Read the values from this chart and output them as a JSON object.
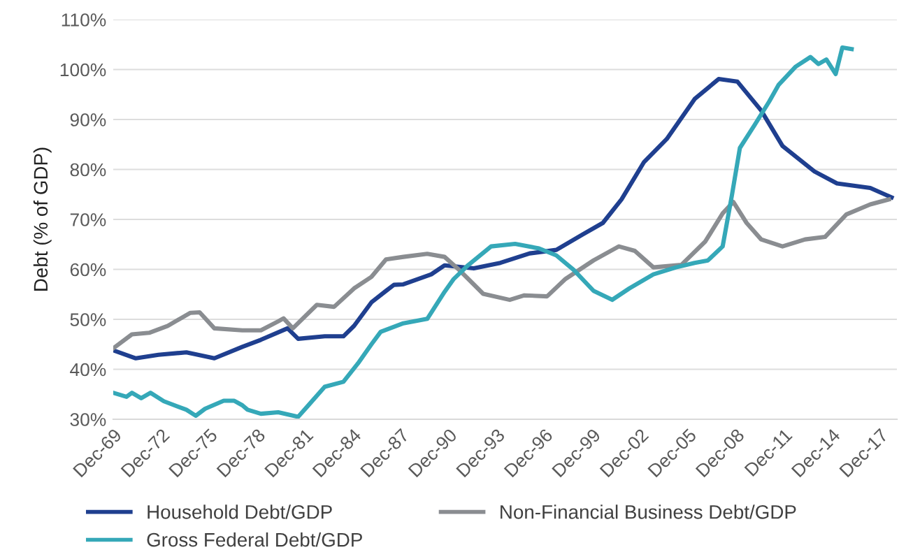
{
  "chart_data": {
    "type": "line",
    "ylabel": "Debt (% of GDP)",
    "xlim": [
      "1969-12",
      "2019-01"
    ],
    "ylim": [
      30,
      110
    ],
    "yticks": [
      {
        "value": 30,
        "label": "30%"
      },
      {
        "value": 40,
        "label": "40%"
      },
      {
        "value": 50,
        "label": "50%"
      },
      {
        "value": 60,
        "label": "60%"
      },
      {
        "value": 70,
        "label": "70%"
      },
      {
        "value": 80,
        "label": "80%"
      },
      {
        "value": 90,
        "label": "90%"
      },
      {
        "value": 100,
        "label": "100%"
      },
      {
        "value": 110,
        "label": "110%"
      }
    ],
    "xticks": [
      {
        "value": "1969-12",
        "label": "Dec-69"
      },
      {
        "value": "1972-12",
        "label": "Dec-72"
      },
      {
        "value": "1975-12",
        "label": "Dec-75"
      },
      {
        "value": "1978-12",
        "label": "Dec-78"
      },
      {
        "value": "1981-12",
        "label": "Dec-81"
      },
      {
        "value": "1984-12",
        "label": "Dec-84"
      },
      {
        "value": "1987-12",
        "label": "Dec-87"
      },
      {
        "value": "1990-12",
        "label": "Dec-90"
      },
      {
        "value": "1993-12",
        "label": "Dec-93"
      },
      {
        "value": "1996-12",
        "label": "Dec-96"
      },
      {
        "value": "1999-12",
        "label": "Dec-99"
      },
      {
        "value": "2002-12",
        "label": "Dec-02"
      },
      {
        "value": "2005-12",
        "label": "Dec-05"
      },
      {
        "value": "2008-12",
        "label": "Dec-08"
      },
      {
        "value": "2011-12",
        "label": "Dec-11"
      },
      {
        "value": "2014-12",
        "label": "Dec-14"
      },
      {
        "value": "2017-12",
        "label": "Dec-17"
      }
    ],
    "grid": "y",
    "legend": "bottom",
    "marker": "none",
    "line_style": "solid",
    "series": [
      {
        "name": "Household Debt/GDP",
        "color": "#1f3f8f",
        "x": [
          "1969-12",
          "1971-05",
          "1972-10",
          "1974-07",
          "1976-04",
          "1978-01",
          "1979-03",
          "1980-11",
          "1981-07",
          "1983-03",
          "1984-05",
          "1985-01",
          "1986-02",
          "1987-01",
          "1987-07",
          "1988-02",
          "1989-11",
          "1990-09",
          "1992-07",
          "1994-03",
          "1996-01",
          "1997-09",
          "1999-05",
          "2000-08",
          "2001-10",
          "2003-03",
          "2004-08",
          "2006-05",
          "2007-11",
          "2009-01",
          "2010-07",
          "2011-11",
          "2013-11",
          "2015-04",
          "2017-05",
          "2018-09"
        ],
        "values": [
          43.8,
          42.2,
          42.9,
          43.4,
          42.2,
          44.5,
          45.9,
          48.2,
          46.1,
          46.6,
          46.6,
          48.7,
          53.4,
          55.7,
          56.9,
          57.0,
          59.0,
          60.8,
          60.2,
          61.3,
          63.2,
          63.9,
          67.0,
          69.3,
          74.0,
          81.5,
          86.1,
          94.1,
          98.1,
          97.6,
          91.8,
          84.7,
          79.6,
          77.2,
          76.3,
          74.4
        ]
      },
      {
        "name": "Non-Financial Business Debt/GDP",
        "color": "#8a8d91",
        "x": [
          "1969-12",
          "1971-02",
          "1972-03",
          "1973-05",
          "1974-10",
          "1975-05",
          "1976-04",
          "1978-01",
          "1979-03",
          "1980-04",
          "1980-08",
          "1981-03",
          "1982-09",
          "1983-10",
          "1985-01",
          "1986-02",
          "1987-01",
          "1988-02",
          "1989-08",
          "1990-09",
          "1991-08",
          "1993-02",
          "1994-10",
          "1995-09",
          "1997-02",
          "1998-04",
          "2000-01",
          "2001-08",
          "2002-08",
          "2003-10",
          "2005-07",
          "2007-01",
          "2008-02",
          "2008-10",
          "2009-08",
          "2010-07",
          "2011-11",
          "2013-04",
          "2014-07",
          "2015-11",
          "2017-05",
          "2018-07"
        ],
        "values": [
          44.2,
          47.0,
          47.3,
          48.7,
          51.3,
          51.4,
          48.2,
          47.8,
          47.8,
          49.6,
          50.2,
          48.2,
          52.9,
          52.5,
          56.2,
          58.5,
          62.0,
          62.5,
          63.1,
          62.5,
          59.9,
          55.1,
          53.9,
          54.8,
          54.6,
          58.1,
          61.8,
          64.6,
          63.7,
          60.4,
          60.9,
          65.6,
          71.2,
          73.5,
          69.3,
          66.0,
          64.6,
          66.0,
          66.5,
          71.0,
          73.0,
          74.0
        ]
      },
      {
        "name": "Gross Federal Debt/GDP",
        "color": "#35a8b8",
        "x": [
          "1969-12",
          "1970-10",
          "1971-02",
          "1971-09",
          "1972-04",
          "1973-02",
          "1974-07",
          "1975-02",
          "1975-09",
          "1976-11",
          "1977-07",
          "1978-01",
          "1978-05",
          "1979-03",
          "1980-04",
          "1981-07",
          "1982-02",
          "1983-03",
          "1984-05",
          "1985-04",
          "1986-02",
          "1986-09",
          "1988-02",
          "1989-08",
          "1990-09",
          "1991-04",
          "1992-03",
          "1993-08",
          "1995-02",
          "1996-08",
          "1997-09",
          "1998-10",
          "2000-01",
          "2001-03",
          "2002-04",
          "2003-10",
          "2005-03",
          "2006-05",
          "2007-03",
          "2008-02",
          "2008-09",
          "2009-03",
          "2010-02",
          "2011-01",
          "2011-08",
          "2012-09",
          "2013-08",
          "2014-02",
          "2014-08",
          "2015-03",
          "2015-08",
          "2016-03"
        ],
        "values": [
          35.3,
          34.5,
          35.3,
          34.2,
          35.3,
          33.6,
          31.9,
          30.7,
          32.1,
          33.7,
          33.7,
          32.8,
          31.9,
          31.1,
          31.4,
          30.5,
          32.6,
          36.5,
          37.5,
          41.2,
          45.0,
          47.5,
          49.2,
          50.1,
          55.5,
          58.1,
          60.9,
          64.6,
          65.1,
          64.2,
          62.8,
          59.9,
          55.7,
          53.9,
          56.2,
          59.0,
          60.4,
          61.3,
          61.8,
          64.6,
          74.9,
          84.3,
          88.9,
          93.6,
          96.9,
          100.6,
          102.5,
          101.1,
          102.0,
          99.1,
          104.4,
          104.1
        ]
      }
    ]
  }
}
